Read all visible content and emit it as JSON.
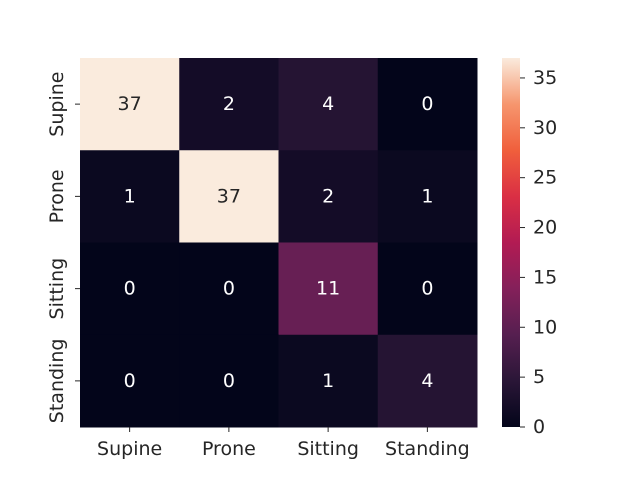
{
  "chart_data": {
    "type": "heatmap",
    "title": "",
    "xlabel": "",
    "ylabel": "",
    "x_categories": [
      "Supine",
      "Prone",
      "Sitting",
      "Standing"
    ],
    "y_categories": [
      "Supine",
      "Prone",
      "Sitting",
      "Standing"
    ],
    "values": [
      [
        37,
        2,
        4,
        0
      ],
      [
        1,
        37,
        2,
        1
      ],
      [
        0,
        0,
        11,
        0
      ],
      [
        0,
        0,
        1,
        4
      ]
    ],
    "annotations": true,
    "colormap": "rocket",
    "colorbar": {
      "range": [
        0,
        37
      ],
      "ticks": [
        0,
        5,
        10,
        15,
        20,
        25,
        30,
        35
      ]
    },
    "annotation_colors": {
      "light_cell_text": "#262626",
      "dark_cell_text": "#ffffff"
    }
  }
}
